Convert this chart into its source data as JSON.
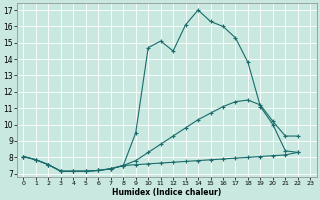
{
  "xlabel": "Humidex (Indice chaleur)",
  "bg_color": "#c8e8e0",
  "grid_color": "#b0d8d0",
  "line_color": "#1a6b6b",
  "xlim": [
    -0.5,
    23.5
  ],
  "ylim": [
    6.8,
    17.4
  ],
  "yticks": [
    7,
    8,
    9,
    10,
    11,
    12,
    13,
    14,
    15,
    16,
    17
  ],
  "xticks": [
    0,
    1,
    2,
    3,
    4,
    5,
    6,
    7,
    8,
    9,
    10,
    11,
    12,
    13,
    14,
    15,
    16,
    17,
    18,
    19,
    20,
    21,
    22,
    23
  ],
  "line1_x": [
    0,
    1,
    2,
    3,
    4,
    5,
    6,
    7,
    8,
    9,
    10,
    11,
    12,
    13,
    14,
    15,
    16,
    17,
    18,
    19,
    20,
    21,
    22
  ],
  "line1_y": [
    8.05,
    7.85,
    7.55,
    7.15,
    7.15,
    7.15,
    7.2,
    7.3,
    7.5,
    9.5,
    14.7,
    15.1,
    14.5,
    16.1,
    17.0,
    16.3,
    16.0,
    15.3,
    13.8,
    11.1,
    10.0,
    8.4,
    8.3
  ],
  "line2_x": [
    0,
    1,
    2,
    3,
    4,
    5,
    6,
    7,
    8,
    9,
    10,
    11,
    12,
    13,
    14,
    15,
    16,
    17,
    18,
    19,
    20,
    21,
    22
  ],
  "line2_y": [
    8.05,
    7.85,
    7.55,
    7.15,
    7.15,
    7.15,
    7.2,
    7.3,
    7.5,
    7.8,
    8.3,
    8.8,
    9.3,
    9.8,
    10.3,
    10.7,
    11.1,
    11.4,
    11.5,
    11.2,
    10.2,
    9.3,
    9.3
  ],
  "line3_x": [
    0,
    1,
    2,
    3,
    4,
    5,
    6,
    7,
    8,
    9,
    10,
    11,
    12,
    13,
    14,
    15,
    16,
    17,
    18,
    19,
    20,
    21,
    22
  ],
  "line3_y": [
    8.05,
    7.85,
    7.55,
    7.15,
    7.15,
    7.15,
    7.2,
    7.3,
    7.5,
    7.55,
    7.6,
    7.65,
    7.7,
    7.75,
    7.8,
    7.85,
    7.9,
    7.95,
    8.0,
    8.05,
    8.1,
    8.15,
    8.3
  ]
}
